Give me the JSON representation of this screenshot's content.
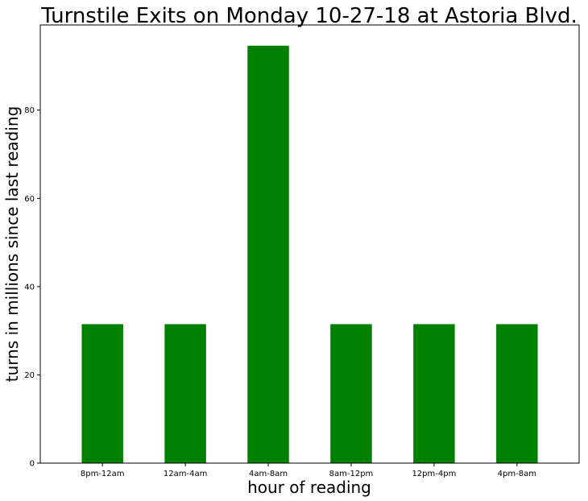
{
  "chart_data": {
    "type": "bar",
    "title": "Turnstile Exits on Monday 10-27-18 at Astoria Blvd.",
    "xlabel": "hour of reading",
    "ylabel": "turns in millions since last reading",
    "categories": [
      "8pm-12am",
      "12am-4am",
      "4am-8am",
      "8am-12pm",
      "12pm-4pm",
      "4pm-8am"
    ],
    "values": [
      31.5,
      31.5,
      94.6,
      31.5,
      31.5,
      31.5
    ],
    "ylim": [
      0,
      99.3
    ],
    "yticks": [
      0,
      20,
      40,
      60,
      80
    ],
    "bar_color": "#008000",
    "grid": false,
    "legend": "none"
  }
}
